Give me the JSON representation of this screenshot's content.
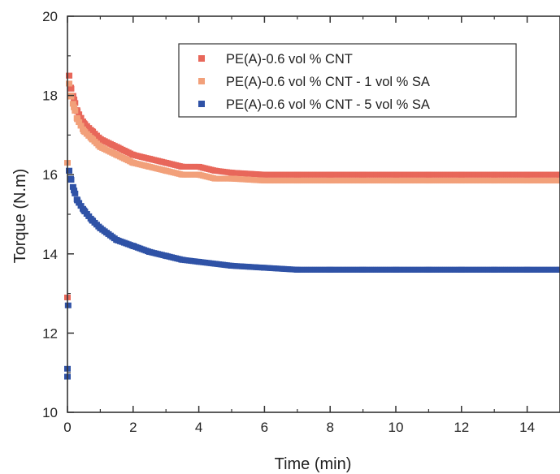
{
  "chart_data": {
    "type": "scatter",
    "title": "",
    "xlabel": "Time (min)",
    "ylabel": "Torque (N.m)",
    "xlim": [
      0,
      15
    ],
    "ylim": [
      10,
      20
    ],
    "xticks": [
      0,
      2,
      4,
      6,
      8,
      10,
      12,
      14
    ],
    "yticks": [
      10,
      12,
      14,
      16,
      18,
      20
    ],
    "grid": false,
    "legend_position": "top-right",
    "series": [
      {
        "name": "PE(A)-0.6 vol % CNT",
        "color": "#E8675A",
        "x": [
          0.0,
          0.05,
          0.1,
          0.2,
          0.3,
          0.5,
          0.75,
          1.0,
          1.5,
          2.0,
          2.5,
          3.0,
          3.5,
          4.0,
          4.5,
          5.0,
          6.0,
          7.0,
          8.0,
          9.0,
          10.0,
          11.0,
          12.0,
          13.0,
          14.0,
          15.0
        ],
        "y": [
          12.9,
          18.5,
          18.2,
          17.9,
          17.6,
          17.3,
          17.1,
          16.9,
          16.7,
          16.5,
          16.4,
          16.3,
          16.2,
          16.2,
          16.1,
          16.05,
          16.0,
          16.0,
          16.0,
          16.0,
          16.0,
          16.0,
          16.0,
          16.0,
          16.0,
          16.0
        ]
      },
      {
        "name": "PE(A)-0.6 vol % CNT - 1 vol % SA",
        "color": "#F2A07A",
        "x": [
          0.0,
          0.05,
          0.1,
          0.2,
          0.3,
          0.5,
          0.75,
          1.0,
          1.5,
          2.0,
          2.5,
          3.0,
          3.5,
          4.0,
          4.5,
          5.0,
          6.0,
          7.0,
          8.0,
          9.0,
          10.0,
          11.0,
          12.0,
          13.0,
          14.0,
          15.0
        ],
        "y": [
          16.3,
          18.3,
          18.0,
          17.7,
          17.4,
          17.1,
          16.9,
          16.7,
          16.5,
          16.3,
          16.2,
          16.1,
          16.0,
          16.0,
          15.9,
          15.9,
          15.85,
          15.85,
          15.85,
          15.85,
          15.85,
          15.85,
          15.85,
          15.85,
          15.85,
          15.85
        ]
      },
      {
        "name": "PE(A)-0.6 vol % CNT - 5 vol % SA",
        "color": "#2F52A6",
        "x": [
          0.0,
          0.0,
          0.02,
          0.05,
          0.1,
          0.2,
          0.3,
          0.5,
          0.75,
          1.0,
          1.5,
          2.0,
          2.5,
          3.0,
          3.5,
          4.0,
          4.5,
          5.0,
          6.0,
          7.0,
          8.0,
          9.0,
          10.0,
          11.0,
          12.0,
          13.0,
          14.0,
          15.0
        ],
        "y": [
          10.9,
          11.1,
          12.7,
          16.1,
          15.9,
          15.6,
          15.35,
          15.1,
          14.85,
          14.65,
          14.35,
          14.2,
          14.05,
          13.95,
          13.85,
          13.8,
          13.75,
          13.7,
          13.65,
          13.6,
          13.6,
          13.6,
          13.6,
          13.6,
          13.6,
          13.6,
          13.6,
          13.6
        ]
      }
    ]
  }
}
